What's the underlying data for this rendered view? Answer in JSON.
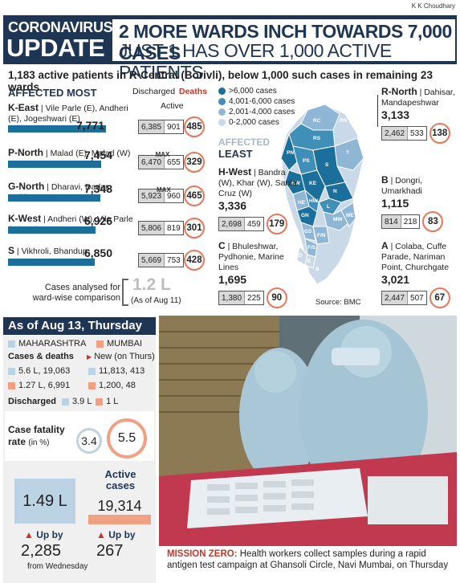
{
  "credit": "K K Choudhary",
  "header": {
    "tag_line1": "CORONAVIRUS",
    "tag_line2": "UPDATE",
    "headline1": "2 MORE WARDS INCH TOWARDS 7,000 CASES",
    "headline2": "JUST 1 HAS OVER 1,000 ACTIVE PATIENTS"
  },
  "subhead": "1,183 active patients in R-Central (Borivli), below 1,000 such cases in remaining 23 wards",
  "most": {
    "title_a": "AFFECTED",
    "title_b": "MOST",
    "col_discharged": "Discharged",
    "col_active": "Active",
    "col_deaths": "Deaths",
    "max": "MAX",
    "wards": [
      {
        "code": "K-East",
        "areas": "Vile Parle (E), Andheri (E), Jogeshwari (E)",
        "total": "7,771",
        "discharged": "6,385",
        "active": "901",
        "deaths": "485",
        "bar": 0.95
      },
      {
        "code": "P-North",
        "areas": "Malad (E), Malad (W)",
        "total": "7,454",
        "discharged": "6,470",
        "active": "655",
        "deaths": "329",
        "bar": 0.91
      },
      {
        "code": "G-North",
        "areas": "Dharavi, Dadar, Mahim",
        "total": "7,348",
        "discharged": "5,923",
        "active": "960",
        "deaths": "465",
        "bar": 0.9
      },
      {
        "code": "K-West",
        "areas": "Andheri (W), Vile Parle (W), Juhu",
        "total": "6,926",
        "discharged": "5,806",
        "active": "819",
        "deaths": "301",
        "bar": 0.85
      },
      {
        "code": "S",
        "areas": "Vikhroli, Bhandup",
        "total": "6,850",
        "discharged": "5,669",
        "active": "753",
        "deaths": "428",
        "bar": 0.84
      }
    ],
    "analysed_label": "Cases analysed for ward-wise comparison",
    "analysed_value": "1.2 L",
    "analysed_date": "(As of Aug 11)"
  },
  "legend": [
    {
      "label": ">6,000 cases",
      "color": "#1b6f9a"
    },
    {
      "label": "4,001-6,000 cases",
      "color": "#3f8fb8"
    },
    {
      "label": "2,001-4,000 cases",
      "color": "#8fb6d4"
    },
    {
      "label": "0-2,000 cases",
      "color": "#c9d9e8"
    }
  ],
  "least": {
    "title_a": "AFFECTED",
    "title_b": "LEAST",
    "hwest": {
      "code": "H-West",
      "areas": "Bandra (W), Khar (W), Santa Cruz (W)",
      "total": "3,336",
      "discharged": "2,698",
      "active": "459",
      "deaths": "179"
    },
    "c": {
      "code": "C",
      "areas": "Bhuleshwar, Pydhonie, Marine Lines",
      "total": "1,695",
      "discharged": "1,380",
      "active": "225",
      "deaths": "90"
    }
  },
  "right": {
    "rnorth": {
      "code": "R-North",
      "areas": "Dahisar, Mandapeshwar",
      "total": "3,133",
      "discharged": "2,462",
      "active": "533",
      "deaths": "138"
    },
    "b": {
      "code": "B",
      "areas": "Dongri, Umarkhadi",
      "total": "1,115",
      "discharged": "814",
      "active": "218",
      "deaths": "83"
    },
    "a": {
      "code": "A",
      "areas": "Colaba, Cuffe Parade, Nariman Point, Churchgate",
      "total": "3,021",
      "discharged": "2,447",
      "active": "507",
      "deaths": "67"
    }
  },
  "map_labels": [
    "RC",
    "RS",
    "PN",
    "PS",
    "T",
    "S",
    "KW",
    "KE",
    "N",
    "L",
    "HE",
    "HW",
    "MW",
    "ME",
    "GN",
    "F/N",
    "GS",
    "F/S",
    "E",
    "D",
    "B",
    "C",
    "A",
    "RN"
  ],
  "source": "Source: BMC",
  "asof": "As of Aug 13, Thursday",
  "state": {
    "maharashtra": "MAHARASHTRA",
    "mumbai": "MUMBAI",
    "cases_deaths": "Cases & deaths",
    "new_thurs": "New (on Thurs)",
    "mh_cases": "5.6 L, 19,063",
    "mh_new": "11,813, 413",
    "mum_cases": "1.27 L, 6,991",
    "mum_new": "1,200, 48",
    "discharged": "Discharged",
    "mh_dis": "3.9 L",
    "mum_dis": "1 L",
    "cfr": "Case fatality rate",
    "cfr_unit": "(in %)",
    "cfr_mh": "3.4",
    "cfr_mum": "5.5",
    "active": "Active cases",
    "mh_active": "1.49 L",
    "mum_active": "19,314",
    "up_by": "Up by",
    "mh_up": "2,285",
    "mum_up": "267",
    "from": "from Wednesday"
  },
  "caption": {
    "lead": "MISSION ZERO:",
    "text": "Health workers collect samples during a rapid antigen test campaign at Ghansoli Circle, Navi Mumbai, on Thursday"
  },
  "colors": {
    "navy": "#1e3553",
    "bar": "#1b6f9a",
    "red": "#c0392b",
    "orange": "#e8765a",
    "mumbai": "#f0a183",
    "mh": "#bcd3e4"
  }
}
